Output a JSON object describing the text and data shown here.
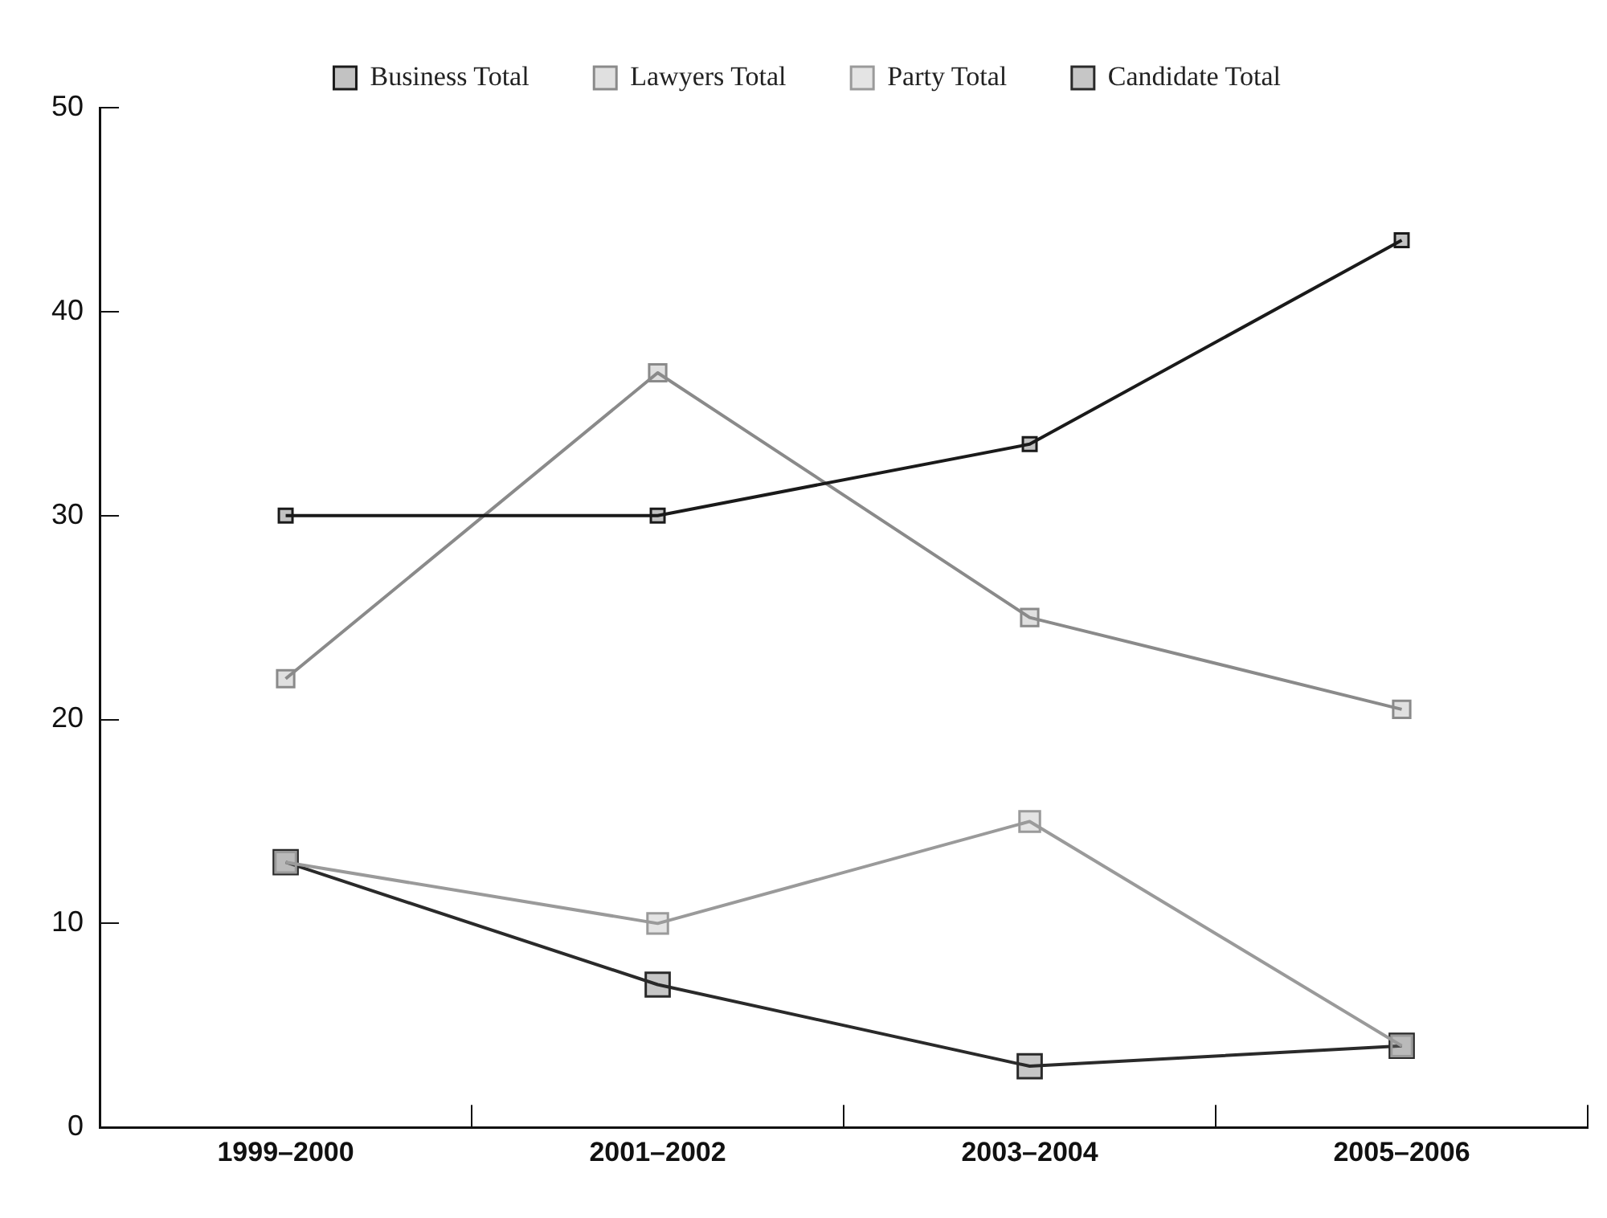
{
  "chart_data": {
    "type": "line",
    "categories": [
      "1999–2000",
      "2001–2002",
      "2003–2004",
      "2005–2006"
    ],
    "series": [
      {
        "name": "Business Total",
        "color": "#1a1a1a",
        "values": [
          30,
          30,
          33.5,
          43.5
        ]
      },
      {
        "name": "Lawyers Total",
        "color": "#8a8a8a",
        "values": [
          22,
          37,
          25,
          20.5
        ]
      },
      {
        "name": "Party Total",
        "color": "#9a9a9a",
        "values": [
          13,
          10,
          15,
          4
        ]
      },
      {
        "name": "Candidate Total",
        "color": "#2a2a2a",
        "values": [
          13,
          7,
          3,
          4
        ]
      }
    ],
    "ylim": [
      0,
      50
    ],
    "yticks": [
      0,
      10,
      20,
      30,
      40,
      50
    ],
    "grid": false,
    "legend": "top",
    "marker": "square",
    "line_style": "solid"
  }
}
